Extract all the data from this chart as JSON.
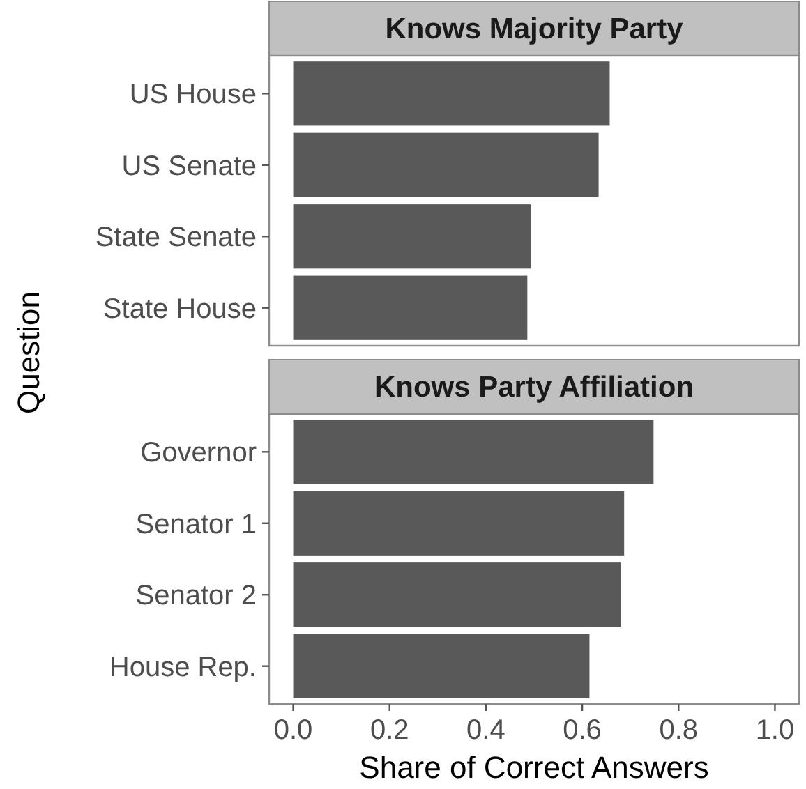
{
  "chart_data": [
    {
      "type": "bar",
      "orientation": "horizontal",
      "title": "Knows Majority Party",
      "ylabel": "Question",
      "categories": [
        "US House",
        "US Senate",
        "State Senate",
        "State House"
      ],
      "values": [
        0.657,
        0.634,
        0.493,
        0.486
      ],
      "color": "#595959",
      "xlim": [
        -0.05,
        1.05
      ],
      "tick_labels": "y",
      "grid": false
    },
    {
      "type": "bar",
      "orientation": "horizontal",
      "title": "Knows Party Affiliation",
      "xlabel": "Share of Correct Answers",
      "categories": [
        "Governor",
        "Senator 1",
        "Senator 2",
        "House Rep."
      ],
      "values": [
        0.748,
        0.687,
        0.68,
        0.615
      ],
      "color": "#595959",
      "xlim": [
        -0.05,
        1.05
      ],
      "xticks": [
        {
          "value": 0,
          "label": "0.0"
        },
        {
          "value": 0.2,
          "label": "0.2"
        },
        {
          "value": 0.4,
          "label": "0.4"
        },
        {
          "value": 0.6,
          "label": "0.6"
        },
        {
          "value": 0.8,
          "label": "0.8"
        },
        {
          "value": 1,
          "label": "1.0"
        }
      ],
      "grid": false
    }
  ]
}
